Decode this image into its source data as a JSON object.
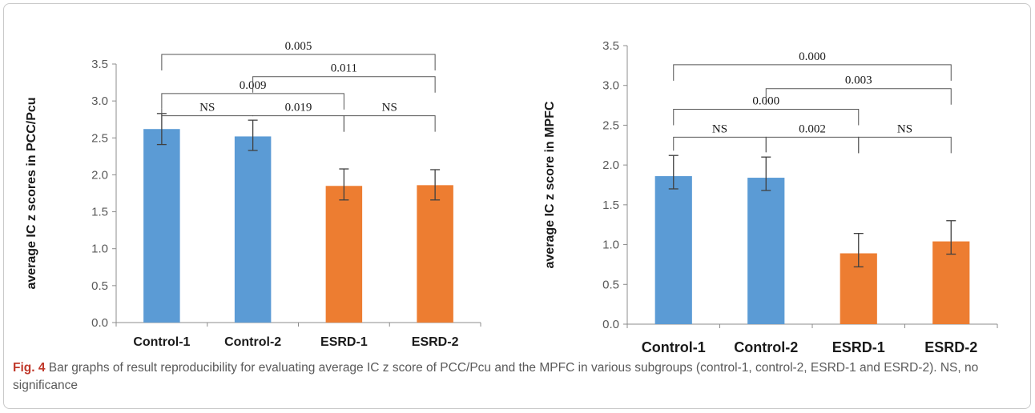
{
  "chart_data": [
    {
      "type": "bar",
      "categories": [
        "Control-1",
        "Control-2",
        "ESRD-1",
        "ESRD-2"
      ],
      "values": [
        2.62,
        2.52,
        1.85,
        1.86
      ],
      "error_low": [
        2.41,
        2.33,
        1.66,
        1.66
      ],
      "error_high": [
        2.83,
        2.74,
        2.08,
        2.07
      ],
      "colors": [
        "#5b9bd5",
        "#5b9bd5",
        "#ed7d31",
        "#ed7d31"
      ],
      "ylabel": "average IC z scores in PCC/Pcu",
      "ylim": [
        0,
        3.5
      ],
      "yticks": [
        "0.0",
        "0.5",
        "1.0",
        "1.5",
        "2.0",
        "2.5",
        "3.0",
        "3.5"
      ],
      "grid": false,
      "significance": [
        {
          "from": 0,
          "to": 1,
          "y": 2.8,
          "label": "NS"
        },
        {
          "from": 1,
          "to": 2,
          "y": 2.8,
          "label": "0.019"
        },
        {
          "from": 2,
          "to": 3,
          "y": 2.8,
          "label": "NS"
        },
        {
          "from": 0,
          "to": 2,
          "y": 3.1,
          "label": "0.009"
        },
        {
          "from": 1,
          "to": 3,
          "y": 3.33,
          "label": "0.011"
        },
        {
          "from": 0,
          "to": 3,
          "y": 3.63,
          "label": "0.005"
        }
      ]
    },
    {
      "type": "bar",
      "categories": [
        "Control-1",
        "Control-2",
        "ESRD-1",
        "ESRD-2"
      ],
      "values": [
        1.86,
        1.84,
        0.89,
        1.04
      ],
      "error_low": [
        1.7,
        1.68,
        0.72,
        0.88
      ],
      "error_high": [
        2.12,
        2.1,
        1.14,
        1.3
      ],
      "colors": [
        "#5b9bd5",
        "#5b9bd5",
        "#ed7d31",
        "#ed7d31"
      ],
      "ylabel": "average IC z score in MPFC",
      "ylim": [
        0,
        3.5
      ],
      "yticks": [
        "0.0",
        "0.5",
        "1.0",
        "1.5",
        "2.0",
        "2.5",
        "3.0",
        "3.5"
      ],
      "grid": false,
      "significance": [
        {
          "from": 0,
          "to": 1,
          "y": 2.35,
          "label": "NS"
        },
        {
          "from": 1,
          "to": 2,
          "y": 2.35,
          "label": "0.002"
        },
        {
          "from": 2,
          "to": 3,
          "y": 2.35,
          "label": "NS"
        },
        {
          "from": 0,
          "to": 2,
          "y": 2.7,
          "label": "0.000"
        },
        {
          "from": 1,
          "to": 3,
          "y": 2.96,
          "label": "0.003"
        },
        {
          "from": 0,
          "to": 3,
          "y": 3.26,
          "label": "0.000"
        }
      ]
    }
  ],
  "caption": {
    "label": "Fig. 4",
    "text": "Bar graphs of result reproducibility for evaluating average IC z score of PCC/Pcu and the MPFC in various subgroups (control-1, control-2, ESRD-1 and ESRD-2). NS, no significance"
  }
}
